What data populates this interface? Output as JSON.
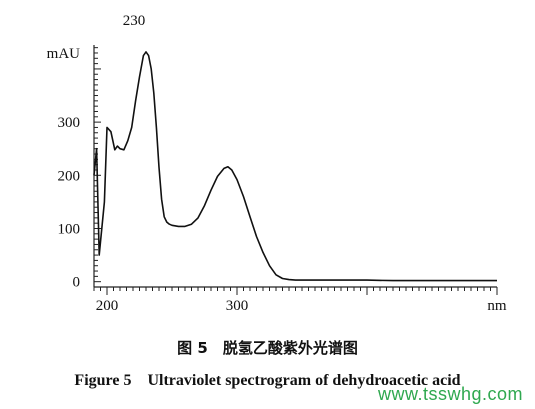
{
  "chart_data": {
    "type": "line",
    "title": "",
    "xlabel": "nm",
    "ylabel": "mAU",
    "xlim": [
      190,
      500
    ],
    "ylim": [
      -10,
      445
    ],
    "x_ticks": [
      200,
      300
    ],
    "y_ticks": [
      0,
      100,
      200,
      300
    ],
    "grid": false,
    "annotations": [
      {
        "text": "230",
        "x": 230
      }
    ],
    "series": [
      {
        "x": [
          190,
          192,
          194,
          196,
          198,
          200,
          203,
          206,
          208,
          210,
          213,
          216,
          219,
          222,
          225,
          228,
          230,
          232,
          234,
          236,
          238,
          240,
          242,
          244,
          246,
          248,
          250,
          255,
          260,
          265,
          270,
          275,
          280,
          285,
          290,
          293,
          296,
          300,
          305,
          310,
          315,
          320,
          325,
          330,
          335,
          340,
          345,
          350,
          360,
          380,
          400,
          420,
          440,
          460,
          480,
          500
        ],
        "values": [
          200,
          250,
          50,
          100,
          150,
          290,
          282,
          248,
          255,
          250,
          248,
          265,
          290,
          340,
          385,
          425,
          432,
          425,
          400,
          355,
          290,
          215,
          155,
          122,
          112,
          108,
          106,
          104,
          104,
          108,
          120,
          143,
          172,
          198,
          213,
          216,
          210,
          192,
          160,
          122,
          85,
          55,
          30,
          13,
          6,
          4,
          3,
          3,
          3,
          3,
          3,
          2,
          2,
          2,
          2,
          2
        ]
      }
    ]
  },
  "caption": {
    "chinese": "图 5　脱氢乙酸紫外光谱图",
    "english": "Figure 5　Ultraviolet spectrogram of dehydroacetic acid"
  },
  "watermark": "www.tsswhg.com"
}
